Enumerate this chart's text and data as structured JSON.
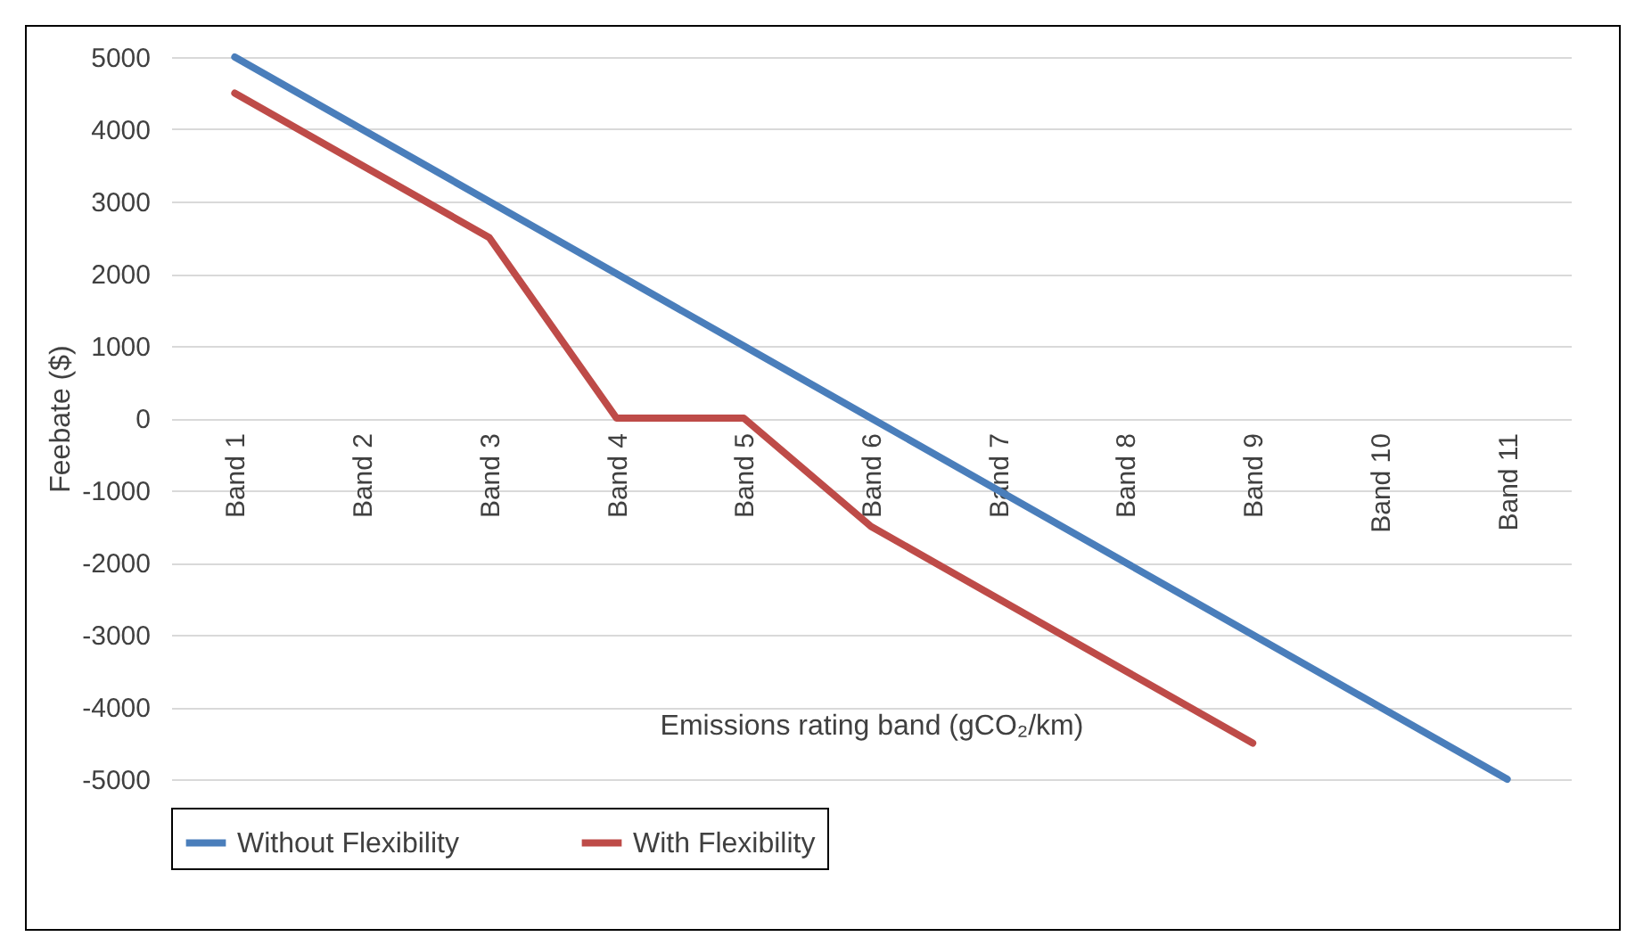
{
  "chart_data": {
    "type": "line",
    "xlabel": "Emissions rating band (gCO₂/km)",
    "ylabel": "Feebate ($)",
    "categories": [
      "Band 1",
      "Band 2",
      "Band 3",
      "Band 4",
      "Band 5",
      "Band 6",
      "Band 7",
      "Band 8",
      "Band 9",
      "Band 10",
      "Band 11"
    ],
    "series": [
      {
        "name": "Without Flexibility",
        "color": "#4a7ebb",
        "values": [
          5000,
          4000,
          3000,
          2000,
          1000,
          0,
          -1000,
          -2000,
          -3000,
          -4000,
          -5000
        ]
      },
      {
        "name": "With Flexibility",
        "color": "#be4b48",
        "values": [
          4500,
          3500,
          2500,
          0,
          0,
          -1500,
          -2500,
          -3500,
          -4500,
          null,
          null
        ]
      }
    ],
    "ylim": [
      -5000,
      5000
    ],
    "yticks": [
      -5000,
      -4000,
      -3000,
      -2000,
      -1000,
      0,
      1000,
      2000,
      3000,
      4000,
      5000
    ],
    "grid": "y",
    "legend": "bottom",
    "marker": "none",
    "line_style": "solid"
  }
}
